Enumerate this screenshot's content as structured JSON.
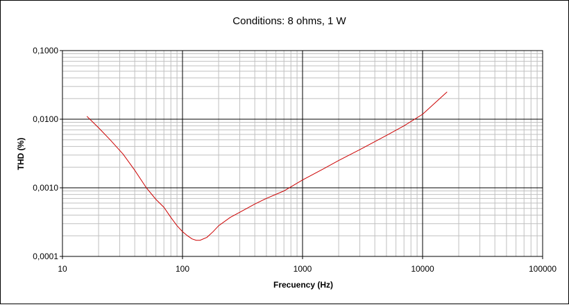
{
  "chart_data": {
    "type": "line",
    "title": "Conditions: 8 ohms, 1 W",
    "xlabel": "Frecuency (Hz)",
    "ylabel": "THD (%)",
    "x_scale": "log",
    "y_scale": "log",
    "xlim": [
      10,
      100000
    ],
    "ylim": [
      0.0001,
      0.1
    ],
    "x_ticks": [
      10,
      100,
      1000,
      10000,
      100000
    ],
    "x_tick_labels": [
      "10",
      "100",
      "1000",
      "10000",
      "100000"
    ],
    "y_ticks": [
      0.0001,
      0.001,
      0.01,
      0.1
    ],
    "y_tick_labels": [
      "0,0001",
      "0,0010",
      "0,0100",
      "0,1000"
    ],
    "grid": true,
    "legend": "none",
    "line_color": "#cc0000",
    "series": [
      {
        "x": [
          16,
          20,
          25,
          32,
          40,
          50,
          60,
          70,
          80,
          90,
          100,
          110,
          120,
          130,
          140,
          160,
          180,
          200,
          250,
          300,
          400,
          500,
          700,
          1000,
          1500,
          2000,
          3000,
          5000,
          7000,
          10000,
          16000
        ],
        "y": [
          0.011,
          0.0075,
          0.005,
          0.0031,
          0.0018,
          0.001,
          0.00068,
          0.00052,
          0.00037,
          0.00028,
          0.00023,
          0.0002,
          0.00018,
          0.000172,
          0.000172,
          0.00019,
          0.00023,
          0.00028,
          0.00037,
          0.00044,
          0.00058,
          0.0007,
          0.0009,
          0.0013,
          0.0019,
          0.0025,
          0.0036,
          0.0058,
          0.008,
          0.0118,
          0.025
        ]
      }
    ]
  }
}
